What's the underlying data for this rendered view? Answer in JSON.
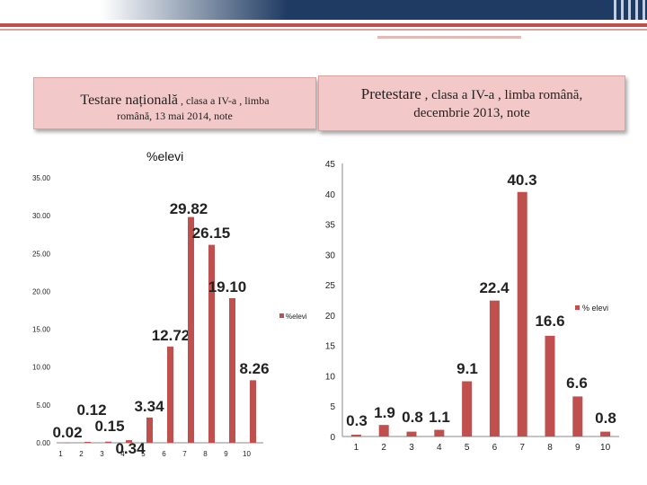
{
  "header": {
    "left_title_part1": "Testare  națională",
    "left_title_part2": " , clasa a IV-a , limba",
    "left_title_line2": "română, 13 mai 2014, note",
    "right_title_part1": "Pretestare",
    "right_title_part2": " , clasa a IV-a , limba română,",
    "right_title_line2": "decembrie 2013, note"
  },
  "colors": {
    "bar": "#c0504d",
    "header": "#1f3b63",
    "box": "#f2c9c8"
  },
  "chart_data": [
    {
      "type": "bar",
      "title": "%elevi",
      "categories": [
        "1",
        "2",
        "3",
        "4",
        "5",
        "6",
        "7",
        "8",
        "9",
        "10"
      ],
      "values": [
        0.02,
        0.12,
        0.15,
        0.34,
        3.34,
        12.72,
        29.82,
        26.15,
        19.1,
        8.26
      ],
      "data_labels": [
        "0.02",
        "0.12",
        "0.15",
        "0.34",
        "3.34",
        "12.72",
        "29.82",
        "26.15",
        "19.10",
        "8.26"
      ],
      "ylim": [
        0,
        35
      ],
      "yticks": [
        "0.00",
        "5.00",
        "10.00",
        "15.00",
        "20.00",
        "25.00",
        "30.00",
        "35.00"
      ],
      "series": [
        {
          "name": "%elevi"
        }
      ],
      "legend": "right",
      "grid": false
    },
    {
      "type": "bar",
      "categories": [
        "1",
        "2",
        "3",
        "4",
        "5",
        "6",
        "7",
        "8",
        "9",
        "10"
      ],
      "values": [
        0.3,
        1.9,
        0.8,
        1.1,
        9.1,
        22.4,
        40.3,
        16.6,
        6.6,
        0.8
      ],
      "data_labels": [
        "0.3",
        "1.9",
        "0.8",
        "1.1",
        "9.1",
        "22.4",
        "40.3",
        "16.6",
        "6.6",
        "0.8"
      ],
      "ylim": [
        0,
        45
      ],
      "yticks": [
        "0",
        "5",
        "10",
        "15",
        "20",
        "25",
        "30",
        "35",
        "40",
        "45"
      ],
      "series": [
        {
          "name": "% elevi"
        }
      ],
      "legend": "right",
      "grid": false
    }
  ]
}
